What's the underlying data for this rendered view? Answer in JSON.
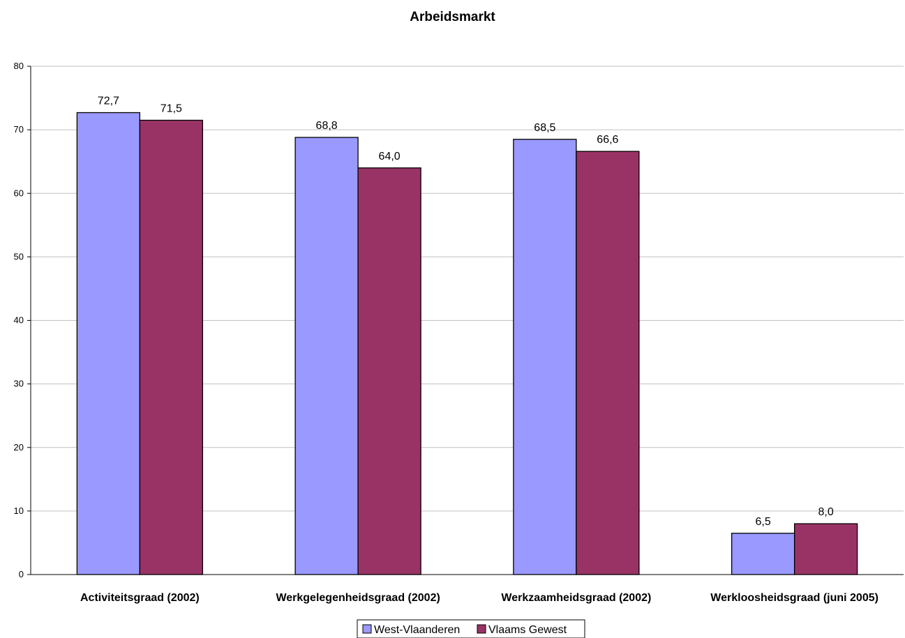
{
  "chart_data": {
    "type": "bar",
    "title": "Arbeidsmarkt",
    "xlabel": "",
    "ylabel": "",
    "ylim": [
      0,
      80
    ],
    "yticks": [
      0,
      10,
      20,
      30,
      40,
      50,
      60,
      70,
      80
    ],
    "grid": true,
    "legend_position": "bottom",
    "categories": [
      "Activiteitsgraad (2002)",
      "Werkgelegenheidsgraad (2002)",
      "Werkzaamheidsgraad (2002)",
      "Werkloosheidsgraad (juni 2005)"
    ],
    "series": [
      {
        "name": "West-Vlaanderen",
        "color": "#9999ff",
        "values": [
          72.7,
          68.8,
          68.5,
          6.5
        ],
        "labels": [
          "72,7",
          "68,8",
          "68,5",
          "6,5"
        ]
      },
      {
        "name": "Vlaams Gewest",
        "color": "#993366",
        "values": [
          71.5,
          64.0,
          66.6,
          8.0
        ],
        "labels": [
          "71,5",
          "64,0",
          "66,6",
          "8,0"
        ]
      }
    ]
  }
}
